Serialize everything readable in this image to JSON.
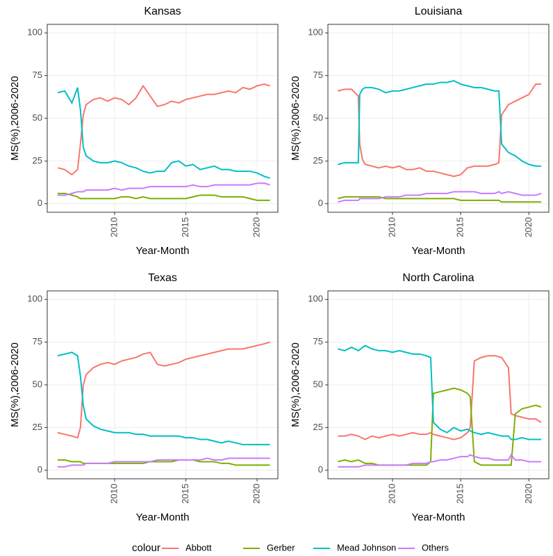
{
  "legend": {
    "title": "colour",
    "position": "bottom"
  },
  "chart_data": [
    {
      "type": "line",
      "title": "Kansas",
      "x_label": "Year-Month",
      "y_label": "MS(%),2006-2020",
      "x": [
        2006,
        2006.5,
        2007,
        2007.4,
        2007.6,
        2007.8,
        2008,
        2008.5,
        2009,
        2009.5,
        2010,
        2010.5,
        2011,
        2011.5,
        2012,
        2012.5,
        2013,
        2013.5,
        2014,
        2014.5,
        2015,
        2015.5,
        2016,
        2016.5,
        2017,
        2017.5,
        2018,
        2018.5,
        2019,
        2019.5,
        2020,
        2020.5,
        2020.9
      ],
      "series": [
        {
          "name": "Abbott",
          "color": "#F8766D",
          "values": [
            21,
            20,
            17,
            20,
            35,
            52,
            58,
            61,
            62,
            60,
            62,
            61,
            58,
            62,
            69,
            63,
            57,
            58,
            60,
            59,
            61,
            62,
            63,
            64,
            64,
            65,
            66,
            65,
            68,
            67,
            69,
            70,
            69
          ]
        },
        {
          "name": "Gerber",
          "color": "#7CAE00",
          "values": [
            6,
            6,
            5,
            4,
            3,
            3,
            3,
            3,
            3,
            3,
            3,
            4,
            4,
            3,
            4,
            3,
            3,
            3,
            3,
            3,
            3,
            4,
            5,
            5,
            5,
            4,
            4,
            4,
            4,
            3,
            2,
            2,
            2
          ]
        },
        {
          "name": "Mead Johnson",
          "color": "#00BFC4",
          "values": [
            65,
            66,
            59,
            68,
            55,
            33,
            28,
            25,
            24,
            24,
            25,
            24,
            22,
            21,
            19,
            18,
            19,
            19,
            24,
            25,
            22,
            23,
            20,
            21,
            22,
            20,
            20,
            19,
            19,
            19,
            18,
            16,
            15
          ]
        },
        {
          "name": "Others",
          "color": "#C77CFF",
          "values": [
            5,
            5,
            6,
            7,
            7,
            7,
            8,
            8,
            8,
            8,
            9,
            8,
            9,
            9,
            9,
            10,
            10,
            10,
            10,
            10,
            10,
            11,
            10,
            10,
            11,
            11,
            11,
            11,
            11,
            11,
            12,
            12,
            11
          ]
        }
      ],
      "xlim": [
        2005.27,
        2021.46
      ],
      "ylim": [
        -5,
        105
      ],
      "xticks": [
        2010,
        2015,
        2020
      ],
      "yticks": [
        0,
        25,
        50,
        75,
        100
      ],
      "grid": true
    },
    {
      "type": "line",
      "title": "Louisiana",
      "x_label": "Year-Month",
      "y_label": "MS(%),2006-2020",
      "x": [
        2006,
        2006.5,
        2007,
        2007.5,
        2007.6,
        2007.8,
        2008,
        2008.5,
        2009,
        2009.5,
        2010,
        2010.5,
        2011,
        2011.5,
        2012,
        2012.5,
        2013,
        2013.5,
        2014,
        2014.5,
        2015,
        2015.5,
        2016,
        2016.5,
        2017,
        2017.5,
        2017.8,
        2018,
        2018.5,
        2019,
        2019.5,
        2020,
        2020.5,
        2020.9
      ],
      "series": [
        {
          "name": "Abbott",
          "color": "#F8766D",
          "values": [
            66,
            67,
            67,
            63,
            35,
            26,
            23,
            22,
            21,
            22,
            21,
            22,
            20,
            20,
            21,
            19,
            19,
            18,
            17,
            16,
            17,
            21,
            22,
            22,
            22,
            23,
            24,
            52,
            58,
            60,
            62,
            64,
            70,
            70
          ]
        },
        {
          "name": "Gerber",
          "color": "#7CAE00",
          "values": [
            3,
            4,
            4,
            4,
            4,
            4,
            4,
            4,
            4,
            3,
            3,
            3,
            3,
            3,
            3,
            3,
            3,
            3,
            3,
            3,
            2,
            2,
            2,
            2,
            2,
            2,
            2,
            1,
            1,
            1,
            1,
            1,
            1,
            1
          ]
        },
        {
          "name": "Mead Johnson",
          "color": "#00BFC4",
          "values": [
            23,
            24,
            24,
            24,
            64,
            67,
            68,
            68,
            67,
            65,
            66,
            66,
            67,
            68,
            69,
            70,
            70,
            71,
            71,
            72,
            70,
            69,
            68,
            68,
            67,
            66,
            66,
            35,
            30,
            28,
            25,
            23,
            22,
            22
          ]
        },
        {
          "name": "Others",
          "color": "#C77CFF",
          "values": [
            1,
            2,
            2,
            2,
            3,
            3,
            3,
            3,
            3,
            4,
            4,
            4,
            5,
            5,
            5,
            6,
            6,
            6,
            6,
            7,
            7,
            7,
            7,
            6,
            6,
            6,
            7,
            6,
            7,
            6,
            5,
            5,
            5,
            6
          ]
        }
      ],
      "xlim": [
        2005.27,
        2021.46
      ],
      "ylim": [
        -5,
        105
      ],
      "xticks": [
        2010,
        2015,
        2020
      ],
      "yticks": [
        0,
        25,
        50,
        75,
        100
      ],
      "grid": true
    },
    {
      "type": "line",
      "title": "Texas",
      "x_label": "Year-Month",
      "y_label": "MS(%),2006-2020",
      "x": [
        2006,
        2006.5,
        2007,
        2007.4,
        2007.6,
        2007.8,
        2008,
        2008.5,
        2009,
        2009.5,
        2010,
        2010.5,
        2011,
        2011.5,
        2012,
        2012.5,
        2013,
        2013.5,
        2014,
        2014.5,
        2015,
        2015.5,
        2016,
        2016.5,
        2017,
        2017.5,
        2018,
        2018.5,
        2019,
        2019.5,
        2020,
        2020.5,
        2020.9
      ],
      "series": [
        {
          "name": "Abbott",
          "color": "#F8766D",
          "values": [
            22,
            21,
            20,
            19,
            25,
            50,
            56,
            60,
            62,
            63,
            62,
            64,
            65,
            66,
            68,
            69,
            62,
            61,
            62,
            63,
            65,
            66,
            67,
            68,
            69,
            70,
            71,
            71,
            71,
            72,
            73,
            74,
            75
          ]
        },
        {
          "name": "Gerber",
          "color": "#7CAE00",
          "values": [
            6,
            6,
            5,
            5,
            5,
            4,
            4,
            4,
            4,
            4,
            4,
            4,
            4,
            4,
            4,
            5,
            5,
            5,
            5,
            6,
            6,
            6,
            5,
            5,
            5,
            4,
            4,
            3,
            3,
            3,
            3,
            3,
            3
          ]
        },
        {
          "name": "Mead Johnson",
          "color": "#00BFC4",
          "values": [
            67,
            68,
            69,
            67,
            55,
            38,
            30,
            26,
            24,
            23,
            22,
            22,
            22,
            21,
            21,
            20,
            20,
            20,
            20,
            20,
            19,
            19,
            18,
            18,
            17,
            16,
            17,
            16,
            15,
            15,
            15,
            15,
            15
          ]
        },
        {
          "name": "Others",
          "color": "#C77CFF",
          "values": [
            2,
            2,
            3,
            3,
            3,
            3,
            4,
            4,
            4,
            4,
            5,
            5,
            5,
            5,
            5,
            5,
            6,
            6,
            6,
            6,
            6,
            6,
            6,
            7,
            6,
            6,
            7,
            7,
            7,
            7,
            7,
            7,
            7
          ]
        }
      ],
      "xlim": [
        2005.27,
        2021.46
      ],
      "ylim": [
        -5,
        105
      ],
      "xticks": [
        2010,
        2015,
        2020
      ],
      "yticks": [
        0,
        25,
        50,
        75,
        100
      ],
      "grid": true
    },
    {
      "type": "line",
      "title": "North Carolina",
      "x_label": "Year-Month",
      "y_label": "MS(%),2006-2020",
      "x": [
        2006,
        2006.5,
        2007,
        2007.5,
        2008,
        2008.5,
        2009,
        2009.5,
        2010,
        2010.5,
        2011,
        2011.5,
        2012,
        2012.5,
        2012.8,
        2013,
        2013.5,
        2014,
        2014.5,
        2015,
        2015.5,
        2015.7,
        2016,
        2016.5,
        2017,
        2017.5,
        2018,
        2018.5,
        2018.7,
        2019,
        2019.5,
        2020,
        2020.5,
        2020.9
      ],
      "series": [
        {
          "name": "Abbott",
          "color": "#F8766D",
          "values": [
            20,
            20,
            21,
            20,
            18,
            20,
            19,
            20,
            21,
            20,
            21,
            22,
            21,
            21,
            22,
            21,
            20,
            19,
            18,
            19,
            22,
            25,
            64,
            66,
            67,
            67,
            66,
            60,
            33,
            32,
            31,
            30,
            30,
            28
          ]
        },
        {
          "name": "Gerber",
          "color": "#7CAE00",
          "values": [
            5,
            6,
            5,
            6,
            4,
            4,
            3,
            3,
            3,
            3,
            3,
            3,
            3,
            3,
            5,
            45,
            46,
            47,
            48,
            47,
            45,
            43,
            5,
            3,
            3,
            3,
            3,
            3,
            3,
            33,
            36,
            37,
            38,
            37
          ]
        },
        {
          "name": "Mead Johnson",
          "color": "#00BFC4",
          "values": [
            71,
            70,
            72,
            70,
            73,
            71,
            70,
            70,
            69,
            70,
            69,
            68,
            68,
            67,
            66,
            28,
            24,
            22,
            25,
            23,
            24,
            23,
            22,
            21,
            22,
            21,
            20,
            20,
            18,
            18,
            19,
            18,
            18,
            18
          ]
        },
        {
          "name": "Others",
          "color": "#C77CFF",
          "values": [
            2,
            2,
            2,
            2,
            3,
            3,
            3,
            3,
            3,
            3,
            3,
            4,
            4,
            4,
            5,
            5,
            6,
            6,
            7,
            8,
            8,
            9,
            8,
            7,
            7,
            6,
            6,
            6,
            9,
            6,
            6,
            5,
            5,
            5
          ]
        }
      ],
      "xlim": [
        2005.27,
        2021.46
      ],
      "ylim": [
        -5,
        105
      ],
      "xticks": [
        2010,
        2015,
        2020
      ],
      "yticks": [
        0,
        25,
        50,
        75,
        100
      ],
      "grid": true
    }
  ]
}
